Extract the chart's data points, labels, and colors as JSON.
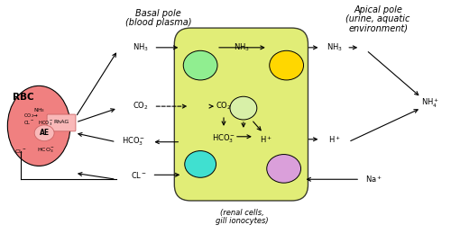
{
  "fig_width": 5.0,
  "fig_height": 2.6,
  "dpi": 100,
  "bg_color": "#ffffff",
  "title_basal": "Basal pole",
  "subtitle_basal": "(blood plasma)",
  "title_apical": "Apical pole",
  "subtitle_apical": "(urine, aquatic",
  "subtitle_apical2": "environment)",
  "label_rbc": "RBC",
  "label_renal": "(renal cells,",
  "label_gill": "gill ionocytes)"
}
